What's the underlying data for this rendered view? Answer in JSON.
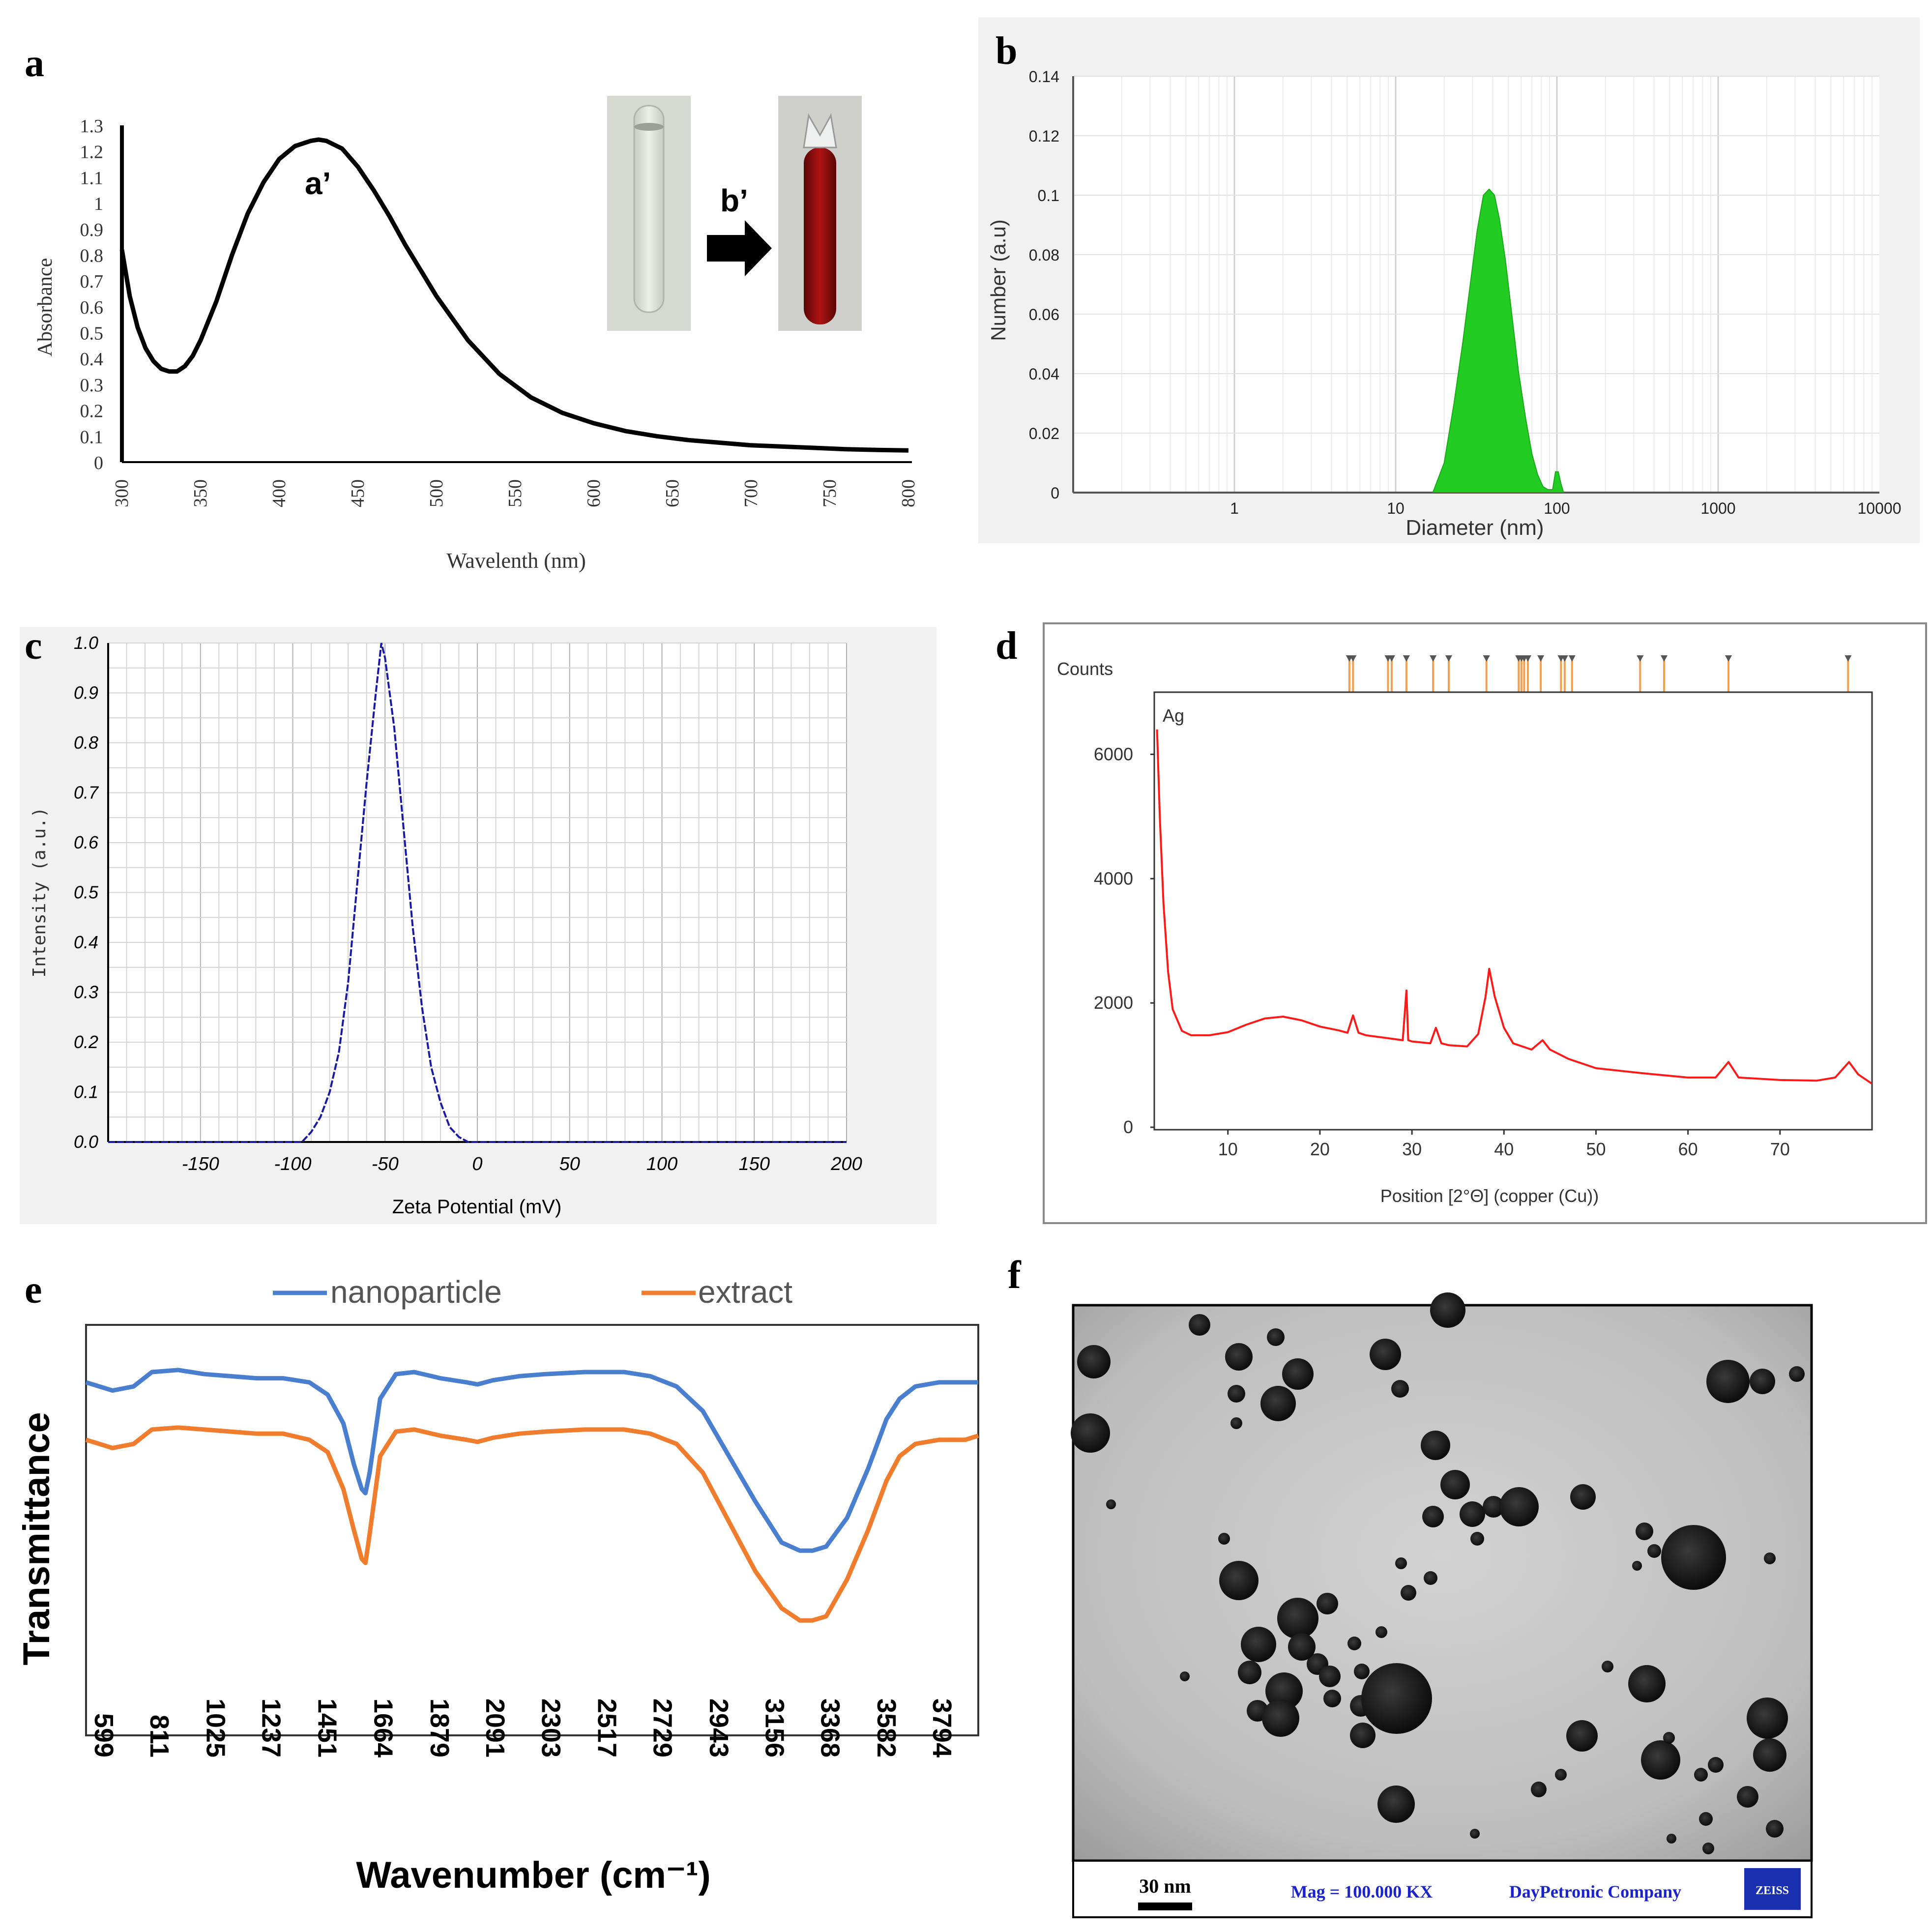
{
  "panels": {
    "a": "a",
    "b": "b",
    "c": "c",
    "d": "d",
    "e": "e",
    "f": "f"
  },
  "colors": {
    "uv": "#000000",
    "dls": "#22cc22",
    "zeta": "#1a1aa0",
    "xrd": "#ff1a1a",
    "xrd_ref": "#f0a050",
    "ftir_np": "#4a7fd0",
    "ftir_ext": "#ef7d2d"
  },
  "chart_data": [
    {
      "id": "uvvis",
      "type": "line",
      "xlabel": "Wavelenth (nm)",
      "ylabel": "Absorbance",
      "xlim": [
        300,
        800
      ],
      "ylim": [
        0,
        1.3
      ],
      "xticks": [
        "300",
        "350",
        "400",
        "450",
        "500",
        "550",
        "600",
        "650",
        "700",
        "750",
        "800"
      ],
      "yticks": [
        "0",
        "0.1",
        "0.2",
        "0.3",
        "0.4",
        "0.5",
        "0.6",
        "0.7",
        "0.8",
        "0.9",
        "1",
        "1.1",
        "1.2",
        "1.3"
      ],
      "x": [
        300,
        305,
        310,
        315,
        320,
        325,
        330,
        335,
        340,
        345,
        350,
        360,
        370,
        380,
        390,
        400,
        410,
        420,
        425,
        430,
        440,
        450,
        460,
        470,
        480,
        490,
        500,
        520,
        540,
        560,
        580,
        600,
        620,
        640,
        660,
        680,
        700,
        720,
        740,
        760,
        780,
        800
      ],
      "y": [
        0.82,
        0.64,
        0.52,
        0.44,
        0.39,
        0.36,
        0.35,
        0.35,
        0.37,
        0.41,
        0.47,
        0.62,
        0.8,
        0.96,
        1.08,
        1.17,
        1.22,
        1.24,
        1.245,
        1.24,
        1.21,
        1.14,
        1.05,
        0.95,
        0.84,
        0.74,
        0.64,
        0.47,
        0.34,
        0.25,
        0.19,
        0.15,
        0.12,
        0.1,
        0.085,
        0.075,
        0.065,
        0.06,
        0.055,
        0.05,
        0.047,
        0.045
      ],
      "annotations": {
        "peak": "a’",
        "arrow": "b’"
      }
    },
    {
      "id": "dls",
      "type": "area",
      "xlabel": "Diameter (nm)",
      "ylabel": "Number (a.u)",
      "xscale": "log",
      "xlim": [
        0.1,
        10000
      ],
      "ylim": [
        0,
        0.14
      ],
      "xticks": [
        "1",
        "10",
        "100",
        "1000",
        "10000"
      ],
      "yticks": [
        "0",
        "0.02",
        "0.04",
        "0.06",
        "0.08",
        "0.1",
        "0.12",
        "0.14"
      ],
      "x": [
        17,
        20,
        23,
        26,
        29,
        32,
        35,
        38,
        41,
        44,
        48,
        53,
        58,
        64,
        70,
        76,
        82,
        88,
        94,
        98,
        102,
        106,
        110
      ],
      "y": [
        0,
        0.01,
        0.03,
        0.05,
        0.07,
        0.088,
        0.1,
        0.102,
        0.1,
        0.092,
        0.078,
        0.058,
        0.04,
        0.025,
        0.013,
        0.006,
        0.002,
        0.001,
        0.001,
        0.007,
        0.007,
        0.003,
        0
      ]
    },
    {
      "id": "zeta",
      "type": "line",
      "xlabel": "Zeta Potential (mV)",
      "ylabel": "Intensity (a.u.)",
      "xlim": [
        -200,
        200
      ],
      "ylim": [
        0,
        1.0
      ],
      "xticks": [
        "-150",
        "-100",
        "-50",
        "0",
        "50",
        "100",
        "150",
        "200"
      ],
      "yticks": [
        "0.0",
        "0.1",
        "0.2",
        "0.3",
        "0.4",
        "0.5",
        "0.6",
        "0.7",
        "0.8",
        "0.9",
        "1.0"
      ],
      "x": [
        -200,
        -95,
        -90,
        -85,
        -80,
        -75,
        -70,
        -65,
        -60,
        -55,
        -52,
        -50,
        -45,
        -40,
        -35,
        -30,
        -25,
        -20,
        -15,
        -10,
        -5,
        200
      ],
      "y": [
        0,
        0,
        0.02,
        0.05,
        0.1,
        0.18,
        0.32,
        0.52,
        0.72,
        0.9,
        1.0,
        0.97,
        0.83,
        0.63,
        0.43,
        0.27,
        0.15,
        0.08,
        0.03,
        0.01,
        0,
        0
      ]
    },
    {
      "id": "xrd",
      "type": "line",
      "xlabel": "Position [2°Θ] (copper (Cu))",
      "ylabel": "Counts",
      "legend": "Ag",
      "xlim": [
        2,
        80
      ],
      "ylim": [
        0,
        7000
      ],
      "xticks": [
        "10",
        "20",
        "30",
        "40",
        "50",
        "60",
        "70"
      ],
      "yticks": [
        "0",
        "2000",
        "4000",
        "6000"
      ],
      "x": [
        2.3,
        2.6,
        3,
        3.5,
        4,
        5,
        6,
        8,
        10,
        12,
        14,
        16,
        18,
        20,
        22,
        23,
        23.6,
        24.2,
        25,
        27,
        29,
        29.4,
        29.6,
        30,
        32,
        32.6,
        33.2,
        34,
        36,
        37.2,
        38,
        38.4,
        39,
        40,
        41,
        43,
        44.2,
        45,
        47,
        50,
        55,
        60,
        63,
        64.4,
        65.5,
        70,
        74,
        76,
        77.5,
        78.5,
        80
      ],
      "y": [
        6400,
        5000,
        3600,
        2500,
        1900,
        1550,
        1480,
        1480,
        1530,
        1650,
        1750,
        1780,
        1720,
        1620,
        1560,
        1520,
        1800,
        1520,
        1480,
        1440,
        1400,
        2200,
        1400,
        1380,
        1350,
        1600,
        1350,
        1320,
        1300,
        1500,
        2100,
        2550,
        2100,
        1600,
        1350,
        1250,
        1400,
        1250,
        1100,
        950,
        870,
        800,
        800,
        1050,
        800,
        760,
        750,
        800,
        1050,
        850,
        700
      ],
      "ref_lines": [
        23.2,
        23.6,
        27.4,
        27.8,
        29.4,
        32.3,
        34.0,
        38.1,
        41.6,
        41.9,
        42.2,
        42.6,
        44.0,
        46.2,
        46.6,
        47.4,
        54.8,
        57.4,
        64.4,
        77.4
      ]
    },
    {
      "id": "ftir",
      "type": "line",
      "xlabel": "Wavenumber (cm⁻¹)",
      "ylabel": "Transmittance",
      "xlim": [
        599,
        4000
      ],
      "ylim": [
        0,
        1
      ],
      "xticks": [
        "599",
        "811",
        "1025",
        "1237",
        "1451",
        "1664",
        "1879",
        "2091",
        "2303",
        "2517",
        "2729",
        "2943",
        "3156",
        "3368",
        "3582",
        "3794"
      ],
      "series": [
        {
          "name": "nanoparticle",
          "x": [
            599,
            650,
            700,
            780,
            850,
            950,
            1050,
            1150,
            1250,
            1350,
            1450,
            1520,
            1580,
            1620,
            1650,
            1664,
            1680,
            1720,
            1780,
            1850,
            1950,
            2050,
            2091,
            2150,
            2250,
            2350,
            2500,
            2650,
            2750,
            2850,
            2950,
            3050,
            3150,
            3250,
            3320,
            3368,
            3420,
            3500,
            3580,
            3650,
            3700,
            3760,
            3850,
            3950,
            4000
          ],
          "y": [
            0.86,
            0.85,
            0.84,
            0.85,
            0.885,
            0.89,
            0.88,
            0.875,
            0.87,
            0.87,
            0.86,
            0.83,
            0.76,
            0.66,
            0.6,
            0.59,
            0.64,
            0.82,
            0.88,
            0.885,
            0.87,
            0.86,
            0.855,
            0.865,
            0.875,
            0.88,
            0.885,
            0.885,
            0.875,
            0.85,
            0.79,
            0.68,
            0.57,
            0.47,
            0.45,
            0.45,
            0.46,
            0.53,
            0.65,
            0.77,
            0.82,
            0.85,
            0.86,
            0.86,
            0.86
          ]
        },
        {
          "name": "extract",
          "x": [
            599,
            650,
            700,
            780,
            850,
            950,
            1050,
            1150,
            1250,
            1350,
            1450,
            1520,
            1580,
            1620,
            1650,
            1664,
            1680,
            1720,
            1780,
            1850,
            1950,
            2050,
            2091,
            2150,
            2250,
            2350,
            2500,
            2650,
            2750,
            2850,
            2950,
            3050,
            3150,
            3250,
            3320,
            3368,
            3420,
            3500,
            3580,
            3650,
            3700,
            3760,
            3850,
            3950,
            4000
          ],
          "y": [
            0.72,
            0.71,
            0.7,
            0.71,
            0.745,
            0.75,
            0.745,
            0.74,
            0.735,
            0.735,
            0.72,
            0.69,
            0.6,
            0.5,
            0.43,
            0.42,
            0.49,
            0.68,
            0.74,
            0.745,
            0.73,
            0.72,
            0.715,
            0.725,
            0.735,
            0.74,
            0.745,
            0.745,
            0.735,
            0.71,
            0.64,
            0.52,
            0.4,
            0.31,
            0.28,
            0.28,
            0.29,
            0.38,
            0.5,
            0.62,
            0.68,
            0.71,
            0.72,
            0.72,
            0.73
          ]
        }
      ]
    }
  ],
  "tem": {
    "scale_label": "30 nm",
    "magnification": "Mag = 100.000 KX",
    "company": "DayPetronic Company",
    "brand": "ZEISS"
  }
}
